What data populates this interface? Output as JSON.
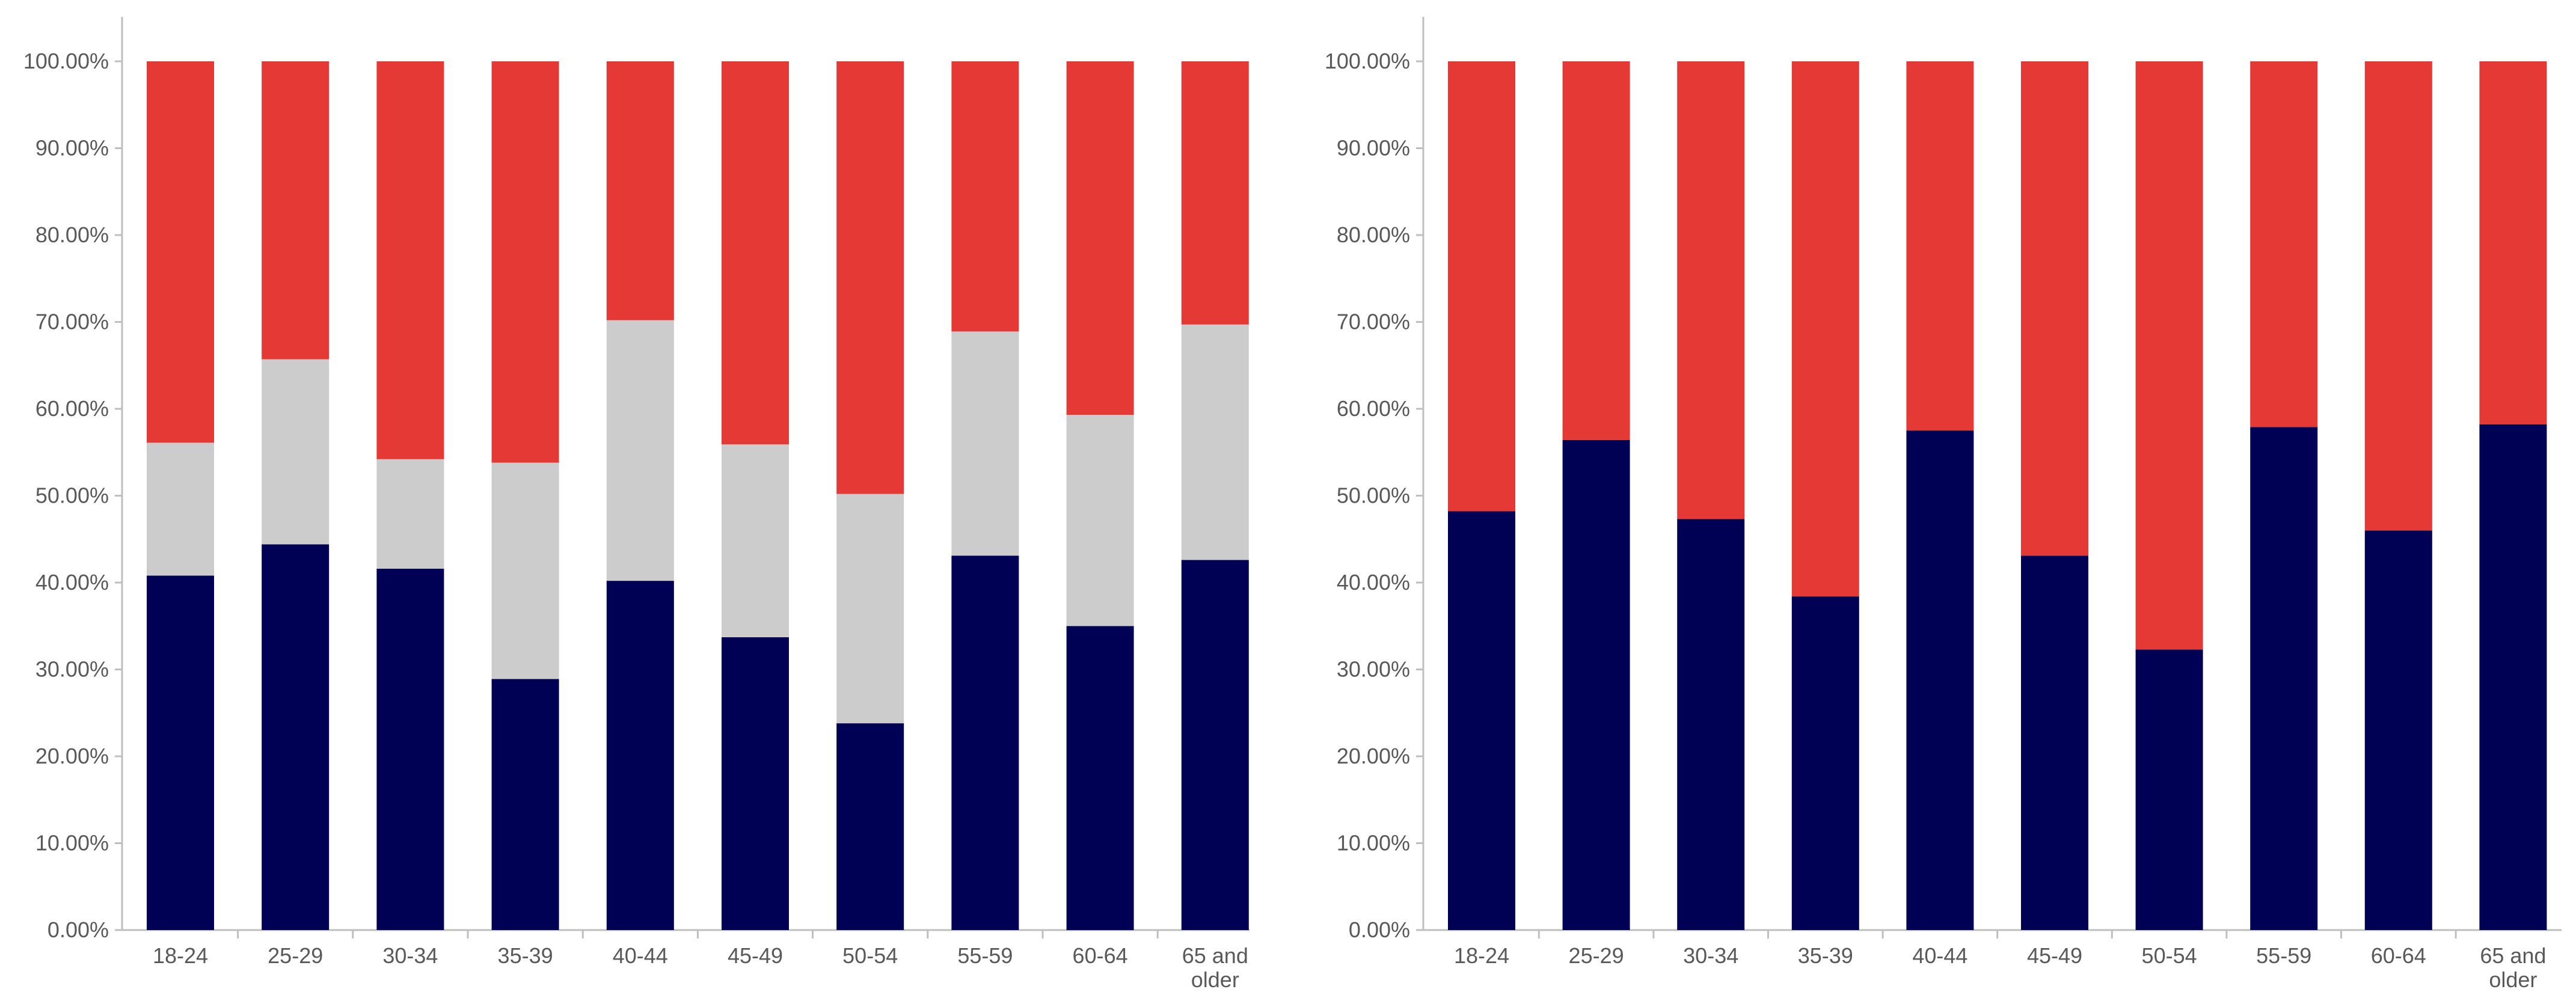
{
  "chart_data": [
    {
      "type": "bar",
      "stacked": true,
      "percent": true,
      "title": "",
      "xlabel": "",
      "ylabel": "",
      "ylim": [
        0,
        100
      ],
      "yticks": [
        "0.00%",
        "10.00%",
        "20.00%",
        "30.00%",
        "40.00%",
        "50.00%",
        "60.00%",
        "70.00%",
        "80.00%",
        "90.00%",
        "100.00%"
      ],
      "categories": [
        [
          "18-24"
        ],
        [
          "25-29"
        ],
        [
          "30-34"
        ],
        [
          "35-39"
        ],
        [
          "40-44"
        ],
        [
          "45-49"
        ],
        [
          "50-54"
        ],
        [
          "55-59"
        ],
        [
          "60-64"
        ],
        [
          "65 and",
          "older"
        ]
      ],
      "legend": "none",
      "series": [
        {
          "name": "Navy segment",
          "color": "#000055",
          "values": [
            40.8,
            44.4,
            41.6,
            28.9,
            40.2,
            33.7,
            23.8,
            43.1,
            35.0,
            42.6
          ]
        },
        {
          "name": "Grey segment",
          "color": "#cccccc",
          "values": [
            15.3,
            21.3,
            12.6,
            24.9,
            30.0,
            22.2,
            26.4,
            25.8,
            24.3,
            27.1
          ]
        },
        {
          "name": "Red segment",
          "color": "#e53935",
          "values": [
            43.9,
            34.3,
            45.8,
            46.2,
            29.8,
            44.1,
            49.8,
            31.1,
            40.7,
            30.3
          ]
        }
      ]
    },
    {
      "type": "bar",
      "stacked": true,
      "percent": true,
      "title": "",
      "xlabel": "",
      "ylabel": "",
      "ylim": [
        0,
        100
      ],
      "yticks": [
        "0.00%",
        "10.00%",
        "20.00%",
        "30.00%",
        "40.00%",
        "50.00%",
        "60.00%",
        "70.00%",
        "80.00%",
        "90.00%",
        "100.00%"
      ],
      "categories": [
        [
          "18-24"
        ],
        [
          "25-29"
        ],
        [
          "30-34"
        ],
        [
          "35-39"
        ],
        [
          "40-44"
        ],
        [
          "45-49"
        ],
        [
          "50-54"
        ],
        [
          "55-59"
        ],
        [
          "60-64"
        ],
        [
          "65 and",
          "older"
        ]
      ],
      "legend": "none",
      "series": [
        {
          "name": "Navy segment",
          "color": "#000055",
          "values": [
            48.2,
            56.4,
            47.3,
            38.4,
            57.5,
            43.1,
            32.3,
            57.9,
            46.0,
            58.2
          ]
        },
        {
          "name": "Red segment",
          "color": "#e53935",
          "values": [
            51.8,
            43.6,
            52.7,
            61.6,
            42.5,
            56.9,
            67.7,
            42.1,
            54.0,
            41.8
          ]
        }
      ]
    }
  ]
}
